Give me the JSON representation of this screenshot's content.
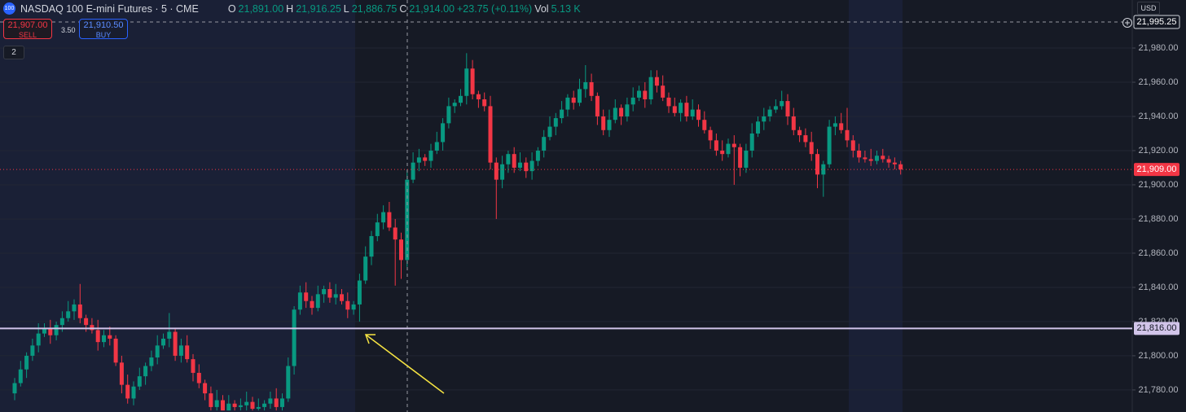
{
  "header": {
    "symbol_icon": "100",
    "symbol": "NASDAQ 100 E-mini Futures · 5 · CME",
    "o_label": "O",
    "o": "21,891.00",
    "h_label": "H",
    "h": "21,916.25",
    "l_label": "L",
    "l": "21,886.75",
    "c_label": "C",
    "c": "21,914.00",
    "change": "+23.75 (+0.11%)",
    "vol_label": "Vol",
    "vol": "5.13 K",
    "sell_price": "21,907.00",
    "sell": "SELL",
    "spread": "3.50",
    "buy_price": "21,910.50",
    "buy": "BUY",
    "indicators": "2",
    "currency": "USD"
  },
  "chart_data": {
    "type": "candlestick",
    "up_color": "#089981",
    "down_color": "#f23645",
    "grid": true,
    "ylim": [
      21767.1,
      22008.1
    ],
    "yticks": [
      {
        "value": 21780,
        "label": "21,780.00"
      },
      {
        "value": 21800,
        "label": "21,800.00"
      },
      {
        "value": 21820,
        "label": "21,820.00"
      },
      {
        "value": 21840,
        "label": "21,840.00"
      },
      {
        "value": 21860,
        "label": "21,860.00"
      },
      {
        "value": 21880,
        "label": "21,880.00"
      },
      {
        "value": 21900,
        "label": "21,900.00"
      },
      {
        "value": 21920,
        "label": "21,920.00"
      },
      {
        "value": 21940,
        "label": "21,940.00"
      },
      {
        "value": 21960,
        "label": "21,960.00"
      },
      {
        "value": 21980,
        "label": "21,980.00"
      }
    ],
    "price_lines": [
      {
        "value": 21995.25,
        "label": "21,995.25",
        "color": "#9598a1",
        "style": "dashed"
      },
      {
        "value": 21909,
        "label": "21,909.00",
        "color": "#f23645",
        "style": "dotted"
      },
      {
        "value": 21816,
        "label": "21,816.00",
        "color": "#d1c4e9",
        "style": "solid"
      }
    ],
    "open": [
      21778,
      21784,
      21792,
      21800,
      21806,
      21813,
      21816,
      21812,
      21818,
      21822,
      21826,
      21830,
      21822,
      21818,
      21815,
      21808,
      21812,
      21810,
      21796,
      21783,
      21775,
      21782,
      21788,
      21794,
      21799,
      21806,
      21810,
      21814,
      21800,
      21806,
      21798,
      21790,
      21784,
      21778,
      21770,
      21774,
      21768,
      21772,
      21770,
      21771,
      21773,
      21769,
      21770,
      21772,
      21775,
      21770,
      21775,
      21794,
      21827,
      21837,
      21832,
      21828,
      21836,
      21839,
      21834,
      21836,
      21832,
      21827,
      21830,
      21844,
      21858,
      21870,
      21878,
      21884,
      21875,
      21868,
      21856,
      21903,
      21913,
      21916,
      21914,
      21920,
      21925,
      21936,
      21946,
      21948,
      21952,
      21968,
      21953,
      21950,
      21946,
      21913,
      21903,
      21912,
      21918,
      21910,
      21913,
      21908,
      21914,
      21920,
      21928,
      21934,
      21939,
      21944,
      21951,
      21948,
      21956,
      21960,
      21952,
      21940,
      21932,
      21938,
      21945,
      21940,
      21947,
      21951,
      21955,
      21950,
      21963,
      21958,
      21951,
      21946,
      21942,
      21948,
      21940,
      21944,
      21938,
      21932,
      21926,
      21920,
      21918,
      21924,
      21922,
      21910,
      21920,
      21930,
      21937,
      21940,
      21944,
      21946,
      21949,
      21940,
      21932,
      21929,
      21925,
      21918,
      21906,
      21912,
      21934,
      21936,
      21932,
      21926,
      21920,
      21916,
      21915,
      21914,
      21917,
      21915,
      21913,
      21912
    ],
    "high": [
      21787,
      21797,
      21802,
      21810,
      21819,
      21819,
      21821,
      21820,
      21826,
      21832,
      21833,
      21842,
      21824,
      21822,
      21821,
      21815,
      21817,
      21812,
      21800,
      21789,
      21785,
      21793,
      21796,
      21803,
      21812,
      21813,
      21825,
      21816,
      21810,
      21812,
      21801,
      21795,
      21786,
      21782,
      21780,
      21777,
      21777,
      21774,
      21775,
      21779,
      21776,
      21775,
      21774,
      21779,
      21781,
      21778,
      21799,
      21829,
      21841,
      21843,
      21835,
      21841,
      21841,
      21843,
      21842,
      21839,
      21837,
      21832,
      21848,
      21864,
      21873,
      21883,
      21888,
      21890,
      21880,
      21872,
      21909,
      21919,
      21921,
      21918,
      21924,
      21931,
      21939,
      21951,
      21950,
      21956,
      21977,
      21973,
      21955,
      21954,
      21952,
      21916,
      21917,
      21920,
      21922,
      21919,
      21916,
      21919,
      21922,
      21932,
      21940,
      21942,
      21949,
      21953,
      21955,
      21962,
      21970,
      21965,
      21954,
      21944,
      21944,
      21950,
      21947,
      21951,
      21957,
      21958,
      21960,
      21967,
      21967,
      21964,
      21954,
      21951,
      21950,
      21952,
      21950,
      21947,
      21943,
      21934,
      21930,
      21926,
      21927,
      21929,
      21924,
      21924,
      21936,
      21940,
      21945,
      21946,
      21950,
      21955,
      21953,
      21945,
      21934,
      21933,
      21931,
      21921,
      21914,
      21938,
      21940,
      21942,
      21945,
      21929,
      21924,
      21920,
      21921,
      21920,
      21921,
      21917,
      21916,
      21914
    ],
    "low": [
      21774,
      21782,
      21787,
      21797,
      21802,
      21811,
      21807,
      21809,
      21814,
      21820,
      21821,
      21819,
      21814,
      21813,
      21803,
      21805,
      21806,
      21794,
      21778,
      21772,
      21771,
      21780,
      21783,
      21791,
      21795,
      21804,
      21805,
      21797,
      21796,
      21796,
      21785,
      21781,
      21774,
      21768,
      21768,
      21768,
      21768,
      21768,
      21768,
      21768,
      21768,
      21768,
      21768,
      21769,
      21768,
      21768,
      21773,
      21789,
      21824,
      21828,
      21824,
      21826,
      21831,
      21831,
      21830,
      21830,
      21822,
      21824,
      21820,
      21842,
      21853,
      21867,
      21874,
      21873,
      21841,
      21845,
      21852,
      21901,
      21908,
      21911,
      21910,
      21918,
      21920,
      21933,
      21942,
      21946,
      21947,
      21950,
      21945,
      21943,
      21909,
      21880,
      21898,
      21907,
      21907,
      21908,
      21904,
      21903,
      21911,
      21916,
      21926,
      21929,
      21936,
      21940,
      21944,
      21946,
      21951,
      21949,
      21935,
      21929,
      21928,
      21936,
      21935,
      21937,
      21943,
      21949,
      21945,
      21947,
      21954,
      21949,
      21942,
      21940,
      21937,
      21937,
      21938,
      21934,
      21930,
      21921,
      21917,
      21914,
      21916,
      21900,
      21905,
      21907,
      21916,
      21928,
      21932,
      21937,
      21942,
      21944,
      21935,
      21929,
      21925,
      21922,
      21914,
      21898,
      21893,
      21910,
      21929,
      21930,
      21922,
      21916,
      21913,
      21913,
      21911,
      21912,
      21913,
      21910,
      21909,
      21906
    ],
    "close": [
      21784,
      21792,
      21800,
      21806,
      21813,
      21816,
      21812,
      21818,
      21822,
      21826,
      21830,
      21822,
      21818,
      21815,
      21808,
      21812,
      21810,
      21796,
      21783,
      21775,
      21782,
      21788,
      21794,
      21799,
      21806,
      21810,
      21814,
      21800,
      21806,
      21798,
      21790,
      21784,
      21778,
      21770,
      21774,
      21768,
      21772,
      21770,
      21771,
      21773,
      21769,
      21770,
      21772,
      21775,
      21770,
      21775,
      21794,
      21827,
      21837,
      21832,
      21828,
      21836,
      21839,
      21834,
      21836,
      21832,
      21827,
      21830,
      21844,
      21858,
      21870,
      21878,
      21884,
      21875,
      21868,
      21856,
      21903,
      21913,
      21916,
      21914,
      21920,
      21925,
      21936,
      21946,
      21948,
      21952,
      21968,
      21953,
      21950,
      21946,
      21913,
      21903,
      21912,
      21918,
      21910,
      21913,
      21908,
      21914,
      21920,
      21928,
      21934,
      21939,
      21944,
      21951,
      21948,
      21956,
      21960,
      21952,
      21940,
      21932,
      21938,
      21945,
      21940,
      21947,
      21951,
      21955,
      21950,
      21963,
      21958,
      21951,
      21946,
      21942,
      21948,
      21940,
      21944,
      21938,
      21932,
      21926,
      21920,
      21918,
      21924,
      21922,
      21910,
      21920,
      21930,
      21937,
      21940,
      21944,
      21946,
      21949,
      21940,
      21932,
      21929,
      21925,
      21918,
      21906,
      21912,
      21934,
      21936,
      21932,
      21926,
      21920,
      21916,
      21915,
      21914,
      21917,
      21915,
      21913,
      21912,
      21909
    ]
  }
}
